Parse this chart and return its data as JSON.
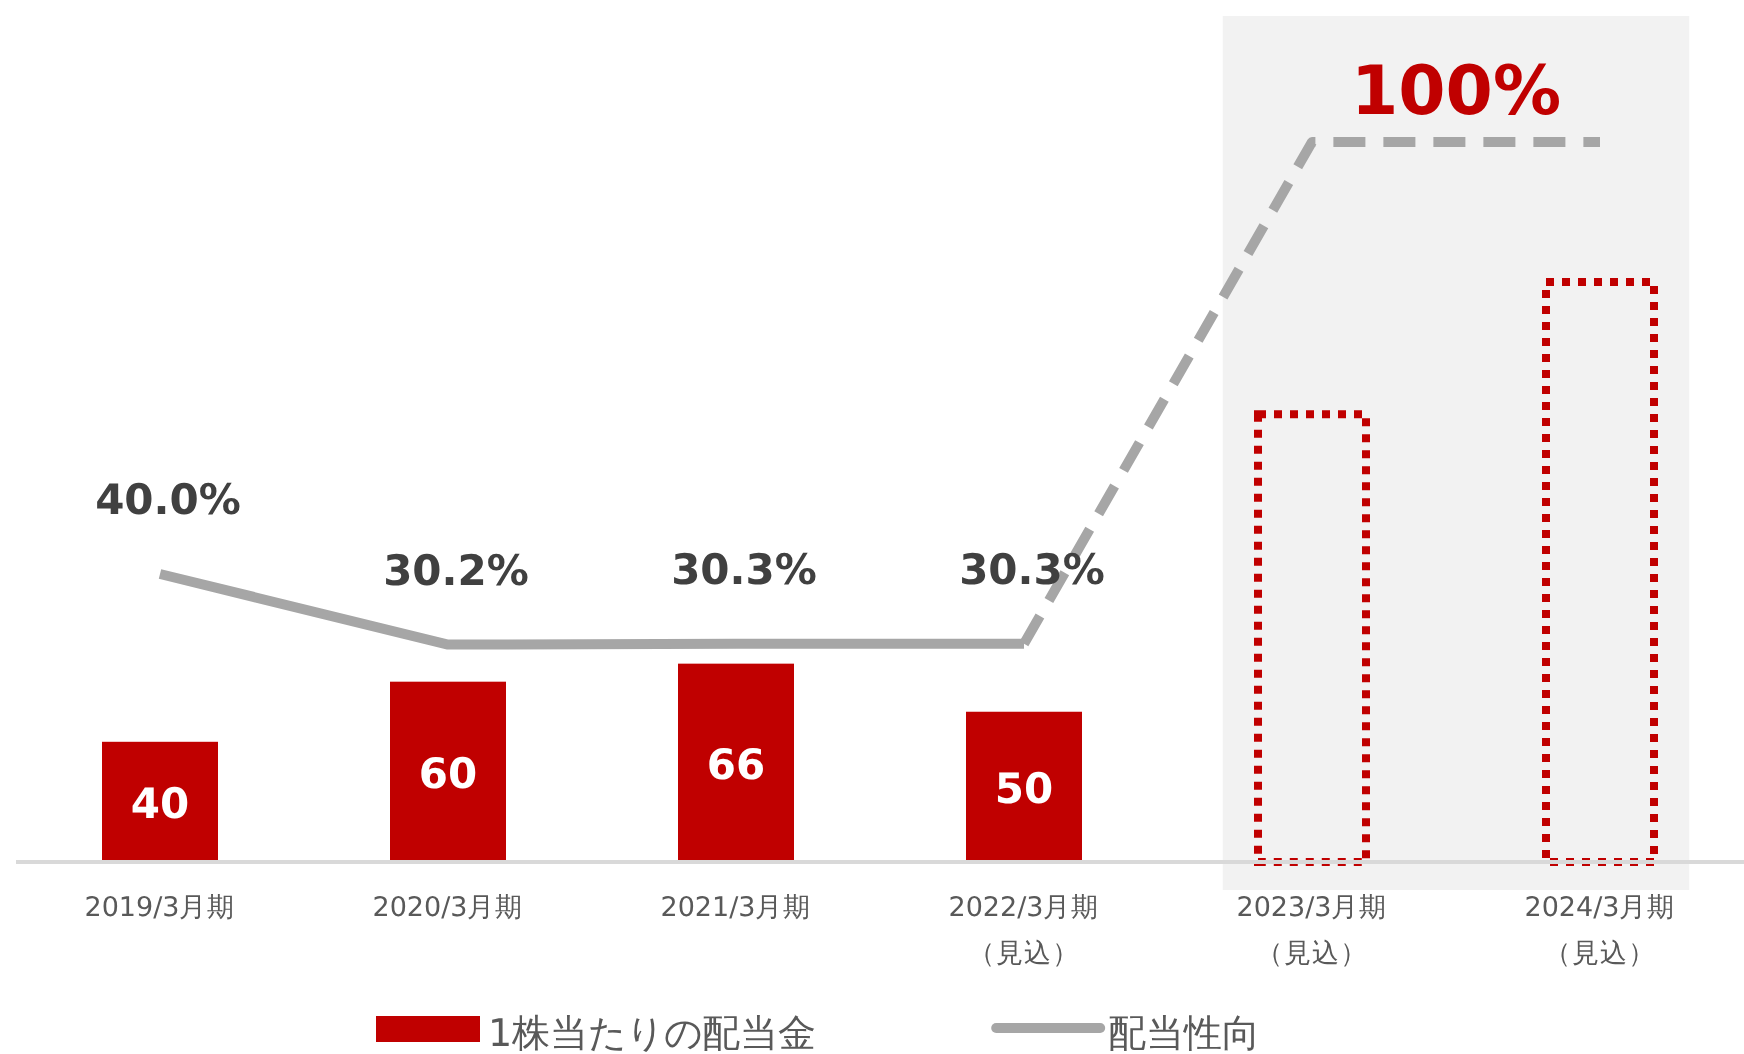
{
  "chart_data": {
    "type": "bar",
    "categories": [
      "2019/3月期",
      "2020/3月期",
      "2021/3月期",
      "2022/3月期（見込）",
      "2023/3月期（見込）",
      "2024/3月期（見込）"
    ],
    "series": [
      {
        "name": "1株当たりの配当金",
        "color": "#c00000",
        "values": [
          40,
          60,
          66,
          50,
          null,
          null
        ],
        "value_labels": [
          "40",
          "60",
          "66",
          "50",
          null,
          null
        ]
      },
      {
        "color": "#c00000",
        "line_style": "dotted",
        "values": [
          null,
          null,
          null,
          null,
          149,
          193
        ],
        "value_labels": [
          null,
          null,
          null,
          null,
          null,
          null
        ]
      },
      {
        "name": "配当性向",
        "type": "line",
        "axis": "y2",
        "color": "#a6a6a6",
        "line_style": "solid",
        "values": [
          40.0,
          30.2,
          30.3,
          30.3,
          null,
          null
        ],
        "value_labels": [
          "40.0%",
          "30.2%",
          "30.3%",
          "30.3%",
          null,
          null
        ]
      },
      {
        "type": "line",
        "axis": "y2",
        "color": "#a6a6a6",
        "line_style": "dashed",
        "values": [
          null,
          null,
          null,
          30.3,
          100,
          100
        ],
        "value_labels": [
          null,
          null,
          null,
          null,
          "100%",
          null
        ]
      }
    ],
    "tick_labels": "x",
    "legend": "bottom",
    "grid": false,
    "bands": [
      {
        "axis": "x",
        "from": "2023/3月期（見込）",
        "to": "2024/3月期（見込）",
        "color": "#f2f2f2"
      }
    ]
  }
}
